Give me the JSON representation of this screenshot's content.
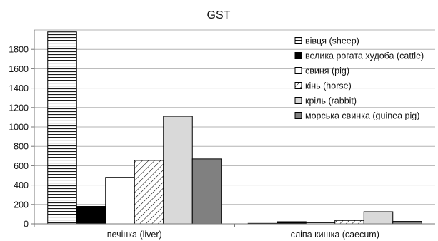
{
  "chart_data": {
    "type": "bar",
    "title": "GST",
    "xlabel": "",
    "ylabel": "",
    "ylim": [
      0,
      2000
    ],
    "yticks": [
      0,
      200,
      400,
      600,
      800,
      1000,
      1200,
      1400,
      1600,
      1800
    ],
    "grid": true,
    "legend_position": "top-right",
    "categories": [
      "печінка (liver)",
      "сліпа кишка (caecum)"
    ],
    "series": [
      {
        "name": "вівця (sheep)",
        "values": [
          1980,
          5
        ],
        "pattern": "horizontal-lines",
        "color": "#ffffff"
      },
      {
        "name": "велика рогата худоба (cattle)",
        "values": [
          180,
          22
        ],
        "pattern": "solid",
        "color": "#000000"
      },
      {
        "name": "свиня (pig)",
        "values": [
          480,
          12
        ],
        "pattern": "solid",
        "color": "#ffffff"
      },
      {
        "name": "кінь (horse)",
        "values": [
          655,
          35
        ],
        "pattern": "diagonal-lines",
        "color": "#ffffff"
      },
      {
        "name": "кріль (rabbit)",
        "values": [
          1110,
          125
        ],
        "pattern": "solid",
        "color": "#d9d9d9"
      },
      {
        "name": "морська свинка (guinea pig)",
        "values": [
          670,
          25
        ],
        "pattern": "solid",
        "color": "#808080"
      }
    ]
  }
}
